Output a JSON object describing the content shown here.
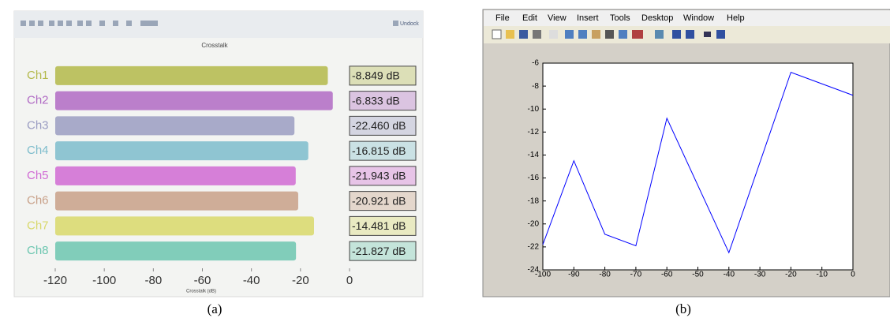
{
  "panel_a": {
    "undock": "Undock",
    "caption": "(a)"
  },
  "panel_b": {
    "menu": [
      "File",
      "Edit",
      "View",
      "Insert",
      "Tools",
      "Desktop",
      "Window",
      "Help"
    ],
    "caption": "(b)"
  },
  "chart_data": [
    {
      "type": "bar",
      "orientation": "horizontal",
      "title": "Crosstalk",
      "x_label": "Crosstalk (dB)",
      "categories": [
        "Ch1",
        "Ch2",
        "Ch3",
        "Ch4",
        "Ch5",
        "Ch6",
        "Ch7",
        "Ch8"
      ],
      "values": [
        -8.849,
        -6.833,
        -22.46,
        -16.815,
        -21.943,
        -20.921,
        -14.481,
        -21.827
      ],
      "value_labels": [
        "-8.849 dB",
        "-6.833 dB",
        "-22.460 dB",
        "-16.815 dB",
        "-21.943 dB",
        "-20.921 dB",
        "-14.481 dB",
        "-21.827 dB"
      ],
      "colors": [
        "#b3b84a",
        "#b06ac4",
        "#9a9cc2",
        "#7dbccc",
        "#d06ad4",
        "#c8a088",
        "#d8d86a",
        "#6cc6b0"
      ],
      "xlim": [
        -120,
        0
      ],
      "xticks": [
        -120,
        -100,
        -80,
        -60,
        -40,
        -20,
        0
      ],
      "grid": false
    },
    {
      "type": "line",
      "x": [
        -100,
        -90,
        -80,
        -70,
        -60,
        -40,
        -20,
        0
      ],
      "series": [
        {
          "color": "#0000ff",
          "values": [
            -21.8,
            -14.5,
            -20.9,
            -21.9,
            -10.8,
            -22.5,
            -6.8,
            -8.8
          ]
        }
      ],
      "xlim": [
        -100,
        0
      ],
      "xticks": [
        -100,
        -90,
        -80,
        -70,
        -60,
        -50,
        -40,
        -30,
        -20,
        -10,
        0
      ],
      "ylim": [
        -24,
        -6
      ],
      "yticks": [
        -24,
        -22,
        -20,
        -18,
        -16,
        -14,
        -12,
        -10,
        -8,
        -6
      ],
      "grid": false
    }
  ]
}
